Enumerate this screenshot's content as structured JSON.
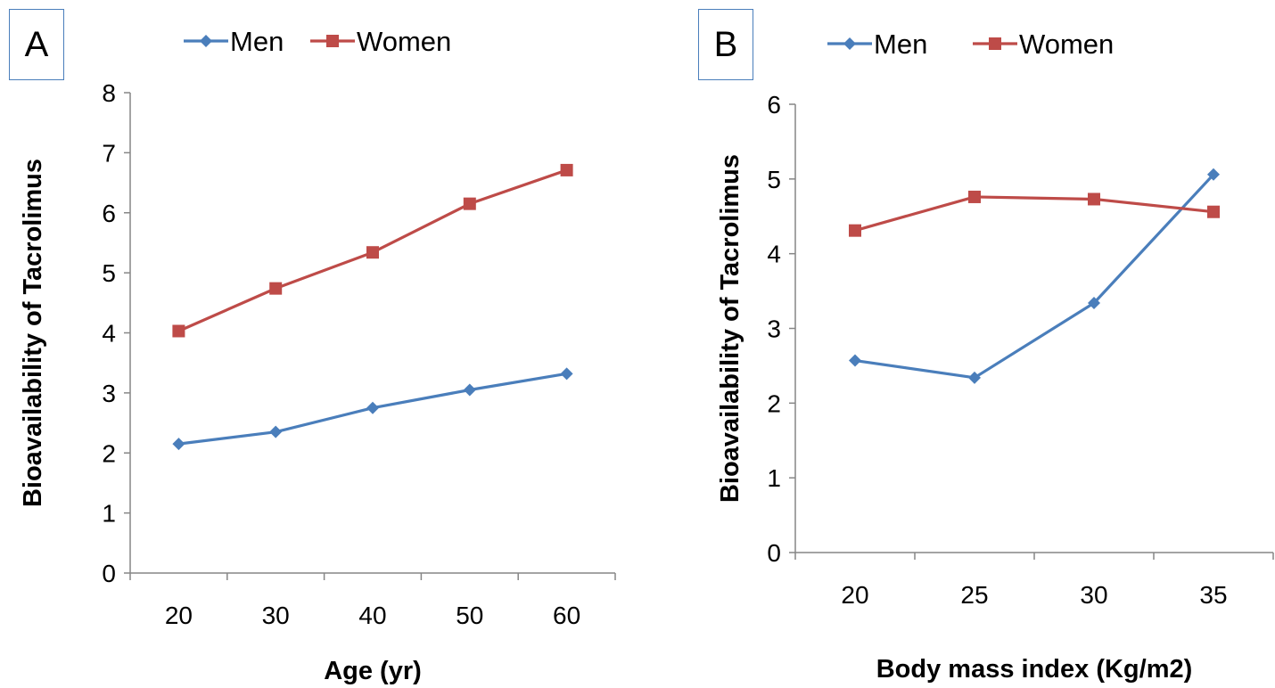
{
  "chart_data": [
    {
      "panel_label": "A",
      "type": "line",
      "xlabel": "Age (yr)",
      "ylabel": "Bioavailability of Tacrolimus",
      "categories": [
        "20",
        "30",
        "40",
        "50",
        "60"
      ],
      "ylim": [
        0,
        8
      ],
      "yticks": [
        "0",
        "1",
        "2",
        "3",
        "4",
        "5",
        "6",
        "7",
        "8"
      ],
      "legend_position": "top",
      "series": [
        {
          "name": "Men",
          "color": "#4a7ebb",
          "marker": "diamond",
          "values": [
            2.15,
            2.35,
            2.75,
            3.05,
            3.32
          ]
        },
        {
          "name": "Women",
          "color": "#be4b48",
          "marker": "square",
          "values": [
            4.03,
            4.74,
            5.34,
            6.15,
            6.71
          ]
        }
      ]
    },
    {
      "panel_label": "B",
      "type": "line",
      "xlabel": "Body mass index (Kg/m2)",
      "ylabel": "Bioavailability of Tacrolimus",
      "categories": [
        "20",
        "25",
        "30",
        "35"
      ],
      "ylim": [
        0,
        6
      ],
      "yticks": [
        "0",
        "1",
        "2",
        "3",
        "4",
        "5",
        "6"
      ],
      "legend_position": "top",
      "series": [
        {
          "name": "Men",
          "color": "#4a7ebb",
          "marker": "diamond",
          "values": [
            2.57,
            2.34,
            3.34,
            5.06
          ]
        },
        {
          "name": "Women",
          "color": "#be4b48",
          "marker": "square",
          "values": [
            4.31,
            4.76,
            4.73,
            4.56
          ]
        }
      ]
    }
  ]
}
